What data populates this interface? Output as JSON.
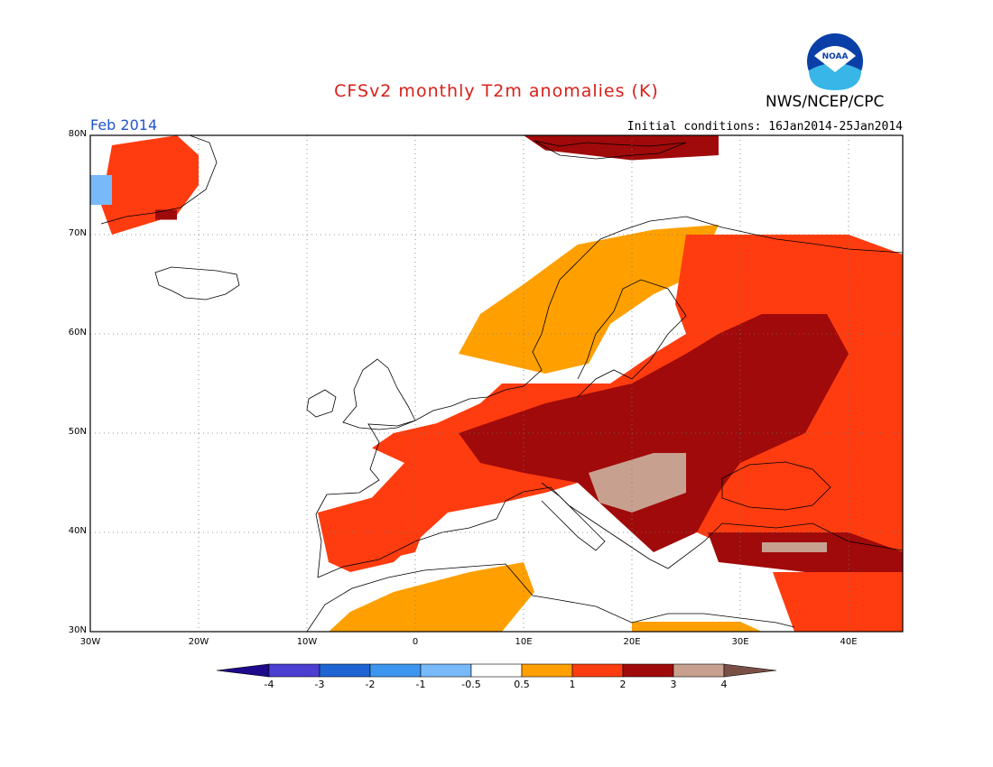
{
  "header": {
    "title": "CFSv2 monthly T2m anomalies (K)",
    "agency": "NWS/NCEP/CPC",
    "logo_text": "NOAA",
    "valid_month": "Feb 2014",
    "initial_conditions": "Initial conditions: 16Jan2014-25Jan2014"
  },
  "map": {
    "lon_range": [
      -30,
      45
    ],
    "lat_range": [
      30,
      80
    ],
    "lat_labels": [
      "80N",
      "70N",
      "60N",
      "50N",
      "40N",
      "30N"
    ],
    "lon_labels": [
      "30W",
      "20W",
      "10W",
      "0",
      "10E",
      "20E",
      "30E",
      "40E"
    ],
    "lat_values": [
      80,
      70,
      60,
      50,
      40,
      30
    ],
    "lon_values": [
      -30,
      -20,
      -10,
      0,
      10,
      20,
      30,
      40
    ],
    "anomaly_regions": [
      {
        "name": "greenland",
        "value": 1.5,
        "poly": [
          [
            -28,
            79
          ],
          [
            -22,
            80
          ],
          [
            -20,
            78
          ],
          [
            -20,
            75
          ],
          [
            -22,
            72
          ],
          [
            -25,
            71
          ],
          [
            -28,
            70
          ],
          [
            -29,
            73
          ]
        ]
      },
      {
        "name": "greenland-core",
        "value": 2.5,
        "poly": [
          [
            -24,
            72.5
          ],
          [
            -22,
            72.5
          ],
          [
            -22,
            71.5
          ],
          [
            -24,
            71.5
          ]
        ]
      },
      {
        "name": "greenland-cold",
        "value": -0.8,
        "poly": [
          [
            -30,
            76
          ],
          [
            -28,
            76
          ],
          [
            -28,
            73
          ],
          [
            -30,
            73
          ]
        ]
      },
      {
        "name": "svalbard",
        "value": 2.5,
        "poly": [
          [
            10,
            80
          ],
          [
            28,
            80
          ],
          [
            28,
            78
          ],
          [
            20,
            77.5
          ],
          [
            12,
            78.5
          ]
        ]
      },
      {
        "name": "scandinavia",
        "value": 0.8,
        "poly": [
          [
            4,
            58
          ],
          [
            6,
            62
          ],
          [
            10,
            65
          ],
          [
            15,
            69
          ],
          [
            22,
            70.5
          ],
          [
            28,
            71
          ],
          [
            26,
            66
          ],
          [
            22,
            64
          ],
          [
            18,
            61
          ],
          [
            16,
            57
          ],
          [
            12,
            56
          ],
          [
            8,
            57
          ]
        ]
      },
      {
        "name": "russia-north",
        "value": 1.5,
        "poly": [
          [
            25,
            70
          ],
          [
            40,
            70
          ],
          [
            45,
            68
          ],
          [
            45,
            30
          ],
          [
            38,
            30
          ],
          [
            36,
            36
          ],
          [
            30,
            38
          ],
          [
            26,
            40
          ],
          [
            24,
            45
          ],
          [
            18,
            46
          ],
          [
            12,
            44
          ],
          [
            8,
            43
          ],
          [
            3,
            42
          ],
          [
            -2,
            37
          ],
          [
            -6,
            36
          ],
          [
            -8,
            37
          ],
          [
            -9,
            42
          ],
          [
            -4,
            43.5
          ],
          [
            -1,
            47
          ],
          [
            -4,
            48.5
          ],
          [
            -2,
            50
          ],
          [
            2,
            51
          ],
          [
            6,
            53
          ],
          [
            8,
            55
          ],
          [
            12,
            55
          ],
          [
            18,
            55
          ],
          [
            22,
            58
          ],
          [
            25,
            60
          ],
          [
            24,
            63
          ]
        ]
      },
      {
        "name": "east-europe-core",
        "value": 2.5,
        "poly": [
          [
            4,
            50
          ],
          [
            12,
            53
          ],
          [
            20,
            55
          ],
          [
            25,
            58
          ],
          [
            28,
            60
          ],
          [
            32,
            62
          ],
          [
            38,
            62
          ],
          [
            40,
            58
          ],
          [
            38,
            54
          ],
          [
            36,
            50
          ],
          [
            30,
            47
          ],
          [
            28,
            44
          ],
          [
            26,
            40
          ],
          [
            22,
            38
          ],
          [
            18,
            42
          ],
          [
            15,
            45
          ],
          [
            10,
            46
          ],
          [
            6,
            47
          ]
        ]
      },
      {
        "name": "balkans-hot",
        "value": 3.5,
        "poly": [
          [
            16,
            46
          ],
          [
            22,
            48
          ],
          [
            25,
            48
          ],
          [
            25,
            44
          ],
          [
            20,
            42
          ],
          [
            17,
            43
          ]
        ]
      },
      {
        "name": "turkey",
        "value": 2.5,
        "poly": [
          [
            27,
            40
          ],
          [
            35,
            40
          ],
          [
            40,
            40
          ],
          [
            45,
            38
          ],
          [
            45,
            36
          ],
          [
            36,
            36
          ],
          [
            28,
            37
          ]
        ]
      },
      {
        "name": "turkey-hot",
        "value": 3.5,
        "poly": [
          [
            32,
            39
          ],
          [
            38,
            39
          ],
          [
            38,
            38
          ],
          [
            32,
            38
          ]
        ]
      },
      {
        "name": "iberia",
        "value": 1.5,
        "poly": [
          [
            -7,
            38
          ],
          [
            -4,
            37
          ],
          [
            0,
            38
          ],
          [
            1,
            41
          ],
          [
            -1,
            43
          ],
          [
            -5,
            43
          ],
          [
            -7,
            41
          ]
        ]
      },
      {
        "name": "north-africa",
        "value": 0.8,
        "poly": [
          [
            -8,
            30
          ],
          [
            -6,
            32
          ],
          [
            -2,
            34
          ],
          [
            5,
            36
          ],
          [
            10,
            37
          ],
          [
            11,
            34
          ],
          [
            8,
            30
          ]
        ]
      },
      {
        "name": "libya-egypt",
        "value": 0.8,
        "poly": [
          [
            20,
            31
          ],
          [
            30,
            31
          ],
          [
            32,
            30
          ],
          [
            20,
            30
          ]
        ]
      },
      {
        "name": "middle-east",
        "value": 1.5,
        "poly": [
          [
            33,
            36
          ],
          [
            45,
            36
          ],
          [
            45,
            30
          ],
          [
            35,
            30
          ],
          [
            34,
            33
          ]
        ]
      }
    ]
  },
  "colorbar": {
    "ticks": [
      "-4",
      "-3",
      "-2",
      "-1",
      "-0.5",
      "0.5",
      "1",
      "2",
      "3",
      "4"
    ],
    "colors": [
      "#1e0a8c",
      "#4b3fd1",
      "#1e64d2",
      "#3c96f0",
      "#78b9fa",
      "#ffffff",
      "#ffa000",
      "#ff3c0f",
      "#a00a0a",
      "#c8a090",
      "#7a5046"
    ]
  }
}
